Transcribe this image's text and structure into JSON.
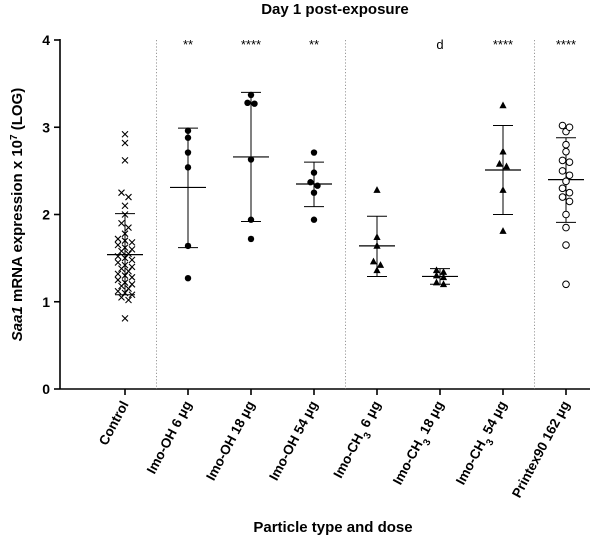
{
  "chart_data": {
    "type": "scatter",
    "title": "Day 1 post-exposure",
    "xlabel": "Particle type and dose",
    "ylabel_parts": [
      {
        "text": "Saa1",
        "style": "italic"
      },
      {
        "text": " mRNA expression x 10"
      },
      {
        "text": "7",
        "style": "superscript"
      },
      {
        "text": " (LOG)"
      }
    ],
    "ylim": [
      0,
      4
    ],
    "yticks": [
      0,
      1,
      2,
      3,
      4
    ],
    "separators_after": [
      0,
      3,
      6
    ],
    "groups": [
      {
        "label": [
          {
            "text": "Control"
          }
        ],
        "marker": "x",
        "significance": "",
        "mean": 1.54,
        "sd_low": 1.08,
        "sd_high": 2.01,
        "values": [
          0.81,
          1.02,
          1.05,
          1.08,
          1.1,
          1.12,
          1.15,
          1.18,
          1.2,
          1.22,
          1.25,
          1.28,
          1.3,
          1.32,
          1.35,
          1.38,
          1.4,
          1.42,
          1.45,
          1.48,
          1.5,
          1.52,
          1.55,
          1.58,
          1.6,
          1.62,
          1.65,
          1.68,
          1.7,
          1.72,
          1.78,
          1.85,
          1.9,
          2.0,
          2.1,
          2.2,
          2.25,
          2.62,
          2.82,
          2.92
        ]
      },
      {
        "label": [
          {
            "text": "Imo-OH 6 μg"
          }
        ],
        "marker": "dot",
        "significance": "**",
        "mean": 2.31,
        "sd_low": 1.62,
        "sd_high": 2.99,
        "values": [
          1.27,
          1.64,
          2.54,
          2.71,
          2.88,
          2.96
        ]
      },
      {
        "label": [
          {
            "text": "Imo-OH 18 μg"
          }
        ],
        "marker": "dot",
        "significance": "****",
        "mean": 2.66,
        "sd_low": 1.92,
        "sd_high": 3.4,
        "values": [
          1.72,
          1.94,
          2.63,
          3.27,
          3.28,
          3.37
        ]
      },
      {
        "label": [
          {
            "text": "Imo-OH 54 μg"
          }
        ],
        "marker": "dot",
        "significance": "**",
        "mean": 2.35,
        "sd_low": 2.09,
        "sd_high": 2.6,
        "values": [
          1.94,
          2.25,
          2.33,
          2.37,
          2.48,
          2.71
        ]
      },
      {
        "label": [
          {
            "text": "Imo-CH"
          },
          {
            "text": "3",
            "style": "subscript"
          },
          {
            "text": " 6 μg"
          }
        ],
        "marker": "triangle",
        "significance": "",
        "mean": 1.64,
        "sd_low": 1.29,
        "sd_high": 1.98,
        "values": [
          1.36,
          1.42,
          1.46,
          1.64,
          1.74,
          2.28
        ]
      },
      {
        "label": [
          {
            "text": "Imo-CH"
          },
          {
            "text": "3",
            "style": "subscript"
          },
          {
            "text": " 18 μg"
          }
        ],
        "marker": "triangle",
        "significance": "d",
        "mean": 1.29,
        "sd_low": 1.2,
        "sd_high": 1.38,
        "values": [
          1.2,
          1.22,
          1.28,
          1.3,
          1.34,
          1.36
        ]
      },
      {
        "label": [
          {
            "text": "Imo-CH"
          },
          {
            "text": "3",
            "style": "subscript"
          },
          {
            "text": " 54 μg"
          }
        ],
        "marker": "triangle",
        "significance": "****",
        "mean": 2.51,
        "sd_low": 2.0,
        "sd_high": 3.02,
        "values": [
          1.81,
          2.28,
          2.55,
          2.58,
          2.72,
          3.25
        ]
      },
      {
        "label": [
          {
            "text": "Printex90 162 μg"
          }
        ],
        "marker": "circle",
        "significance": "****",
        "mean": 2.4,
        "sd_low": 1.91,
        "sd_high": 2.88,
        "values": [
          1.2,
          1.65,
          1.85,
          2.0,
          2.15,
          2.2,
          2.25,
          2.3,
          2.38,
          2.45,
          2.5,
          2.6,
          2.62,
          2.72,
          2.8,
          2.95,
          3.0,
          3.02
        ]
      }
    ]
  }
}
